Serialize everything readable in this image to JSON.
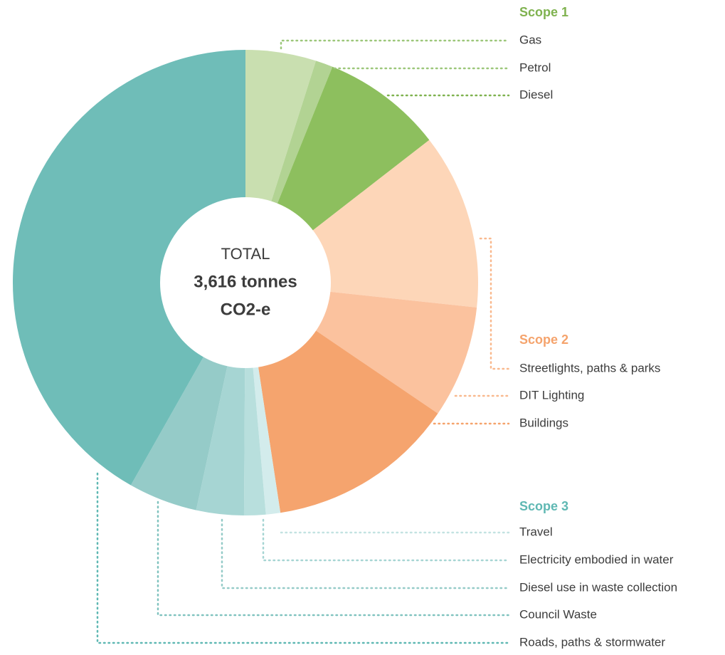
{
  "chart_data": {
    "type": "pie",
    "center_text": [
      "TOTAL",
      "3,616 tonnes",
      "CO2-e"
    ],
    "groups": [
      {
        "name": "Scope 1",
        "color": "#7fb24f"
      },
      {
        "name": "Scope 2",
        "color": "#f5a36c"
      },
      {
        "name": "Scope 3",
        "color": "#5fb8b3"
      }
    ],
    "categories": [
      "Gas",
      "Petrol",
      "Diesel",
      "Streetlights, paths & parks",
      "DIT Lighting",
      "Buildings",
      "Travel",
      "Electricity embodied in water",
      "Diesel use in waste collection",
      "Council Waste",
      "Roads, paths & stormwater"
    ],
    "values": [
      4.9,
      1.2,
      8.4,
      12.2,
      7.8,
      13.1,
      1,
      1.5,
      3.3,
      4.8,
      41.8
    ],
    "colors": [
      "#c9dfb0",
      "#b2d393",
      "#8dbf5e",
      "#fdd6b8",
      "#fbc29e",
      "#f5a46e",
      "#d3ecec",
      "#b8dfdd",
      "#a6d5d3",
      "#95cbc8",
      "#6fbdb8"
    ]
  }
}
